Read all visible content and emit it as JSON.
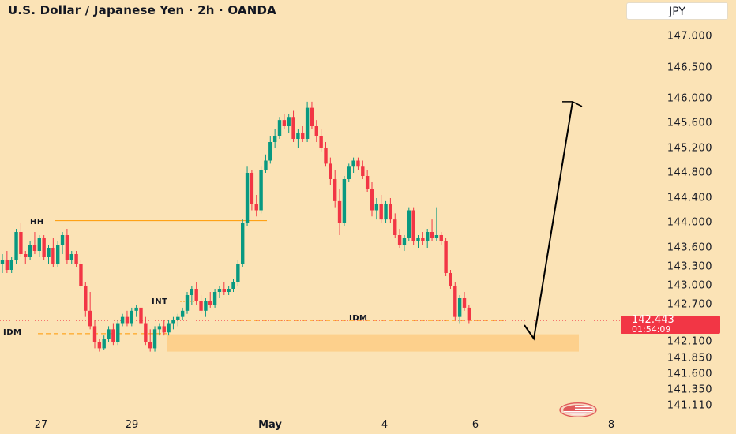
{
  "header": {
    "title": "U.S. Dollar / Japanese Yen · 2h · OANDA",
    "currency_button": "JPY"
  },
  "price_badge": {
    "price": "142.443",
    "countdown": "01:54:09"
  },
  "annotations": {
    "hh": "HH",
    "int": "INT",
    "idm_right": "IDM",
    "idm_left": "IDM"
  },
  "colors": {
    "background": "#fbe3b6",
    "up": "#089981",
    "down": "#f23645",
    "zone": "#fdd08c",
    "line": "#ff9800",
    "arrow": "#000000"
  },
  "icons": [
    "us-flag-icon"
  ],
  "chart_data": {
    "type": "candlestick",
    "title": "U.S. Dollar / Japanese Yen · 2h · OANDA",
    "ylim": [
      141.11,
      147.0
    ],
    "y_axis_scale": "non-linear (tick labels unevenly spaced)",
    "y_ticks": [
      147.0,
      146.5,
      146.0,
      145.6,
      145.2,
      144.8,
      144.4,
      144.0,
      143.6,
      143.3,
      143.0,
      142.7,
      142.1,
      141.85,
      141.6,
      141.35,
      141.11
    ],
    "y_tick_labels": [
      "147.000",
      "146.500",
      "146.000",
      "145.600",
      "145.200",
      "144.800",
      "144.400",
      "144.000",
      "143.600",
      "143.300",
      "143.000",
      "142.700",
      "142.100",
      "141.850",
      "141.600",
      "141.350",
      "141.110"
    ],
    "x_tick_labels": [
      "27",
      "29",
      "May",
      "4",
      "6",
      "8"
    ],
    "last_price": 142.443,
    "hh_level": 144.03,
    "int_level": 142.75,
    "idm_level": 142.43,
    "demand_zone": [
      141.95,
      142.22
    ],
    "projection_arrow": [
      142.15,
      145.95
    ],
    "candles_ohlc": [
      [
        143.35,
        143.5,
        143.2,
        143.4
      ],
      [
        143.4,
        143.55,
        143.2,
        143.25
      ],
      [
        143.25,
        143.45,
        143.2,
        143.4
      ],
      [
        143.4,
        143.9,
        143.35,
        143.85
      ],
      [
        143.85,
        144.0,
        143.45,
        143.5
      ],
      [
        143.5,
        143.55,
        143.35,
        143.45
      ],
      [
        143.45,
        143.7,
        143.4,
        143.65
      ],
      [
        143.65,
        143.85,
        143.5,
        143.55
      ],
      [
        143.55,
        143.8,
        143.45,
        143.75
      ],
      [
        143.75,
        143.8,
        143.4,
        143.45
      ],
      [
        143.45,
        143.65,
        143.35,
        143.6
      ],
      [
        143.6,
        143.75,
        143.3,
        143.35
      ],
      [
        143.35,
        143.7,
        143.3,
        143.65
      ],
      [
        143.65,
        143.85,
        143.5,
        143.8
      ],
      [
        143.8,
        143.9,
        143.35,
        143.4
      ],
      [
        143.4,
        143.55,
        143.35,
        143.5
      ],
      [
        143.5,
        143.55,
        143.3,
        143.35
      ],
      [
        143.35,
        143.4,
        142.95,
        143.0
      ],
      [
        143.0,
        143.05,
        142.5,
        142.6
      ],
      [
        142.6,
        142.9,
        142.3,
        142.35
      ],
      [
        142.35,
        142.45,
        142.0,
        142.1
      ],
      [
        142.1,
        142.15,
        141.95,
        142.0
      ],
      [
        142.0,
        142.2,
        141.97,
        142.15
      ],
      [
        142.15,
        142.35,
        142.1,
        142.3
      ],
      [
        142.3,
        142.4,
        142.05,
        142.1
      ],
      [
        142.1,
        142.45,
        142.05,
        142.4
      ],
      [
        142.4,
        142.55,
        142.35,
        142.5
      ],
      [
        142.5,
        142.6,
        142.35,
        142.4
      ],
      [
        142.4,
        142.65,
        142.35,
        142.6
      ],
      [
        142.6,
        142.7,
        142.5,
        142.65
      ],
      [
        142.65,
        142.75,
        142.35,
        142.4
      ],
      [
        142.4,
        142.5,
        142.05,
        142.1
      ],
      [
        142.1,
        142.3,
        141.95,
        142.0
      ],
      [
        142.0,
        142.35,
        141.95,
        142.3
      ],
      [
        142.3,
        142.4,
        142.2,
        142.35
      ],
      [
        142.35,
        142.45,
        142.2,
        142.25
      ],
      [
        142.25,
        142.45,
        142.2,
        142.4
      ],
      [
        142.4,
        142.5,
        142.3,
        142.45
      ],
      [
        142.45,
        142.55,
        142.35,
        142.5
      ],
      [
        142.5,
        142.65,
        142.45,
        142.6
      ],
      [
        142.6,
        142.9,
        142.55,
        142.85
      ],
      [
        142.85,
        143.0,
        142.7,
        142.95
      ],
      [
        142.95,
        143.05,
        142.7,
        142.75
      ],
      [
        142.75,
        142.85,
        142.55,
        142.6
      ],
      [
        142.6,
        142.8,
        142.5,
        142.75
      ],
      [
        142.75,
        142.9,
        142.65,
        142.7
      ],
      [
        142.7,
        142.95,
        142.65,
        142.9
      ],
      [
        142.9,
        143.0,
        142.8,
        142.95
      ],
      [
        142.95,
        143.05,
        142.85,
        142.9
      ],
      [
        142.9,
        143.0,
        142.85,
        142.95
      ],
      [
        142.95,
        143.1,
        142.9,
        143.05
      ],
      [
        143.05,
        143.4,
        143.0,
        143.35
      ],
      [
        143.35,
        144.05,
        143.3,
        144.0
      ],
      [
        144.0,
        144.9,
        143.95,
        144.8
      ],
      [
        144.8,
        144.85,
        144.2,
        144.3
      ],
      [
        144.3,
        144.45,
        144.1,
        144.2
      ],
      [
        144.2,
        144.9,
        144.15,
        144.85
      ],
      [
        144.85,
        145.1,
        144.8,
        145.0
      ],
      [
        145.0,
        145.4,
        144.95,
        145.3
      ],
      [
        145.3,
        145.5,
        145.2,
        145.4
      ],
      [
        145.4,
        145.7,
        145.35,
        145.65
      ],
      [
        145.65,
        145.75,
        145.5,
        145.55
      ],
      [
        145.55,
        145.75,
        145.45,
        145.7
      ],
      [
        145.7,
        145.8,
        145.3,
        145.35
      ],
      [
        145.35,
        145.5,
        145.2,
        145.45
      ],
      [
        145.45,
        145.55,
        145.3,
        145.35
      ],
      [
        145.35,
        145.95,
        145.3,
        145.85
      ],
      [
        145.85,
        145.95,
        145.5,
        145.55
      ],
      [
        145.55,
        145.65,
        145.3,
        145.4
      ],
      [
        145.4,
        145.5,
        145.15,
        145.2
      ],
      [
        145.2,
        145.3,
        144.9,
        144.95
      ],
      [
        144.95,
        145.05,
        144.6,
        144.7
      ],
      [
        144.7,
        144.85,
        144.25,
        144.35
      ],
      [
        144.35,
        144.55,
        143.8,
        144.0
      ],
      [
        144.0,
        144.75,
        143.95,
        144.7
      ],
      [
        144.7,
        144.95,
        144.65,
        144.9
      ],
      [
        144.9,
        145.05,
        144.8,
        145.0
      ],
      [
        145.0,
        145.05,
        144.85,
        144.9
      ],
      [
        144.9,
        145.0,
        144.7,
        144.75
      ],
      [
        144.75,
        144.85,
        144.5,
        144.55
      ],
      [
        144.55,
        144.65,
        144.1,
        144.2
      ],
      [
        144.2,
        144.4,
        144.05,
        144.3
      ],
      [
        144.3,
        144.45,
        144.0,
        144.05
      ],
      [
        144.05,
        144.35,
        144.0,
        144.3
      ],
      [
        144.3,
        144.4,
        144.0,
        144.05
      ],
      [
        144.05,
        144.15,
        143.75,
        143.8
      ],
      [
        143.8,
        143.9,
        143.6,
        143.65
      ],
      [
        143.65,
        143.8,
        143.55,
        143.75
      ],
      [
        143.75,
        144.25,
        143.7,
        144.2
      ],
      [
        144.2,
        144.25,
        143.65,
        143.7
      ],
      [
        143.7,
        143.8,
        143.6,
        143.75
      ],
      [
        143.75,
        143.85,
        143.65,
        143.7
      ],
      [
        143.7,
        143.9,
        143.6,
        143.85
      ],
      [
        143.85,
        144.05,
        143.7,
        143.75
      ],
      [
        143.75,
        144.25,
        143.7,
        143.8
      ],
      [
        143.8,
        143.85,
        143.65,
        143.7
      ],
      [
        143.7,
        143.75,
        143.15,
        143.2
      ],
      [
        143.2,
        143.25,
        142.95,
        143.0
      ],
      [
        143.0,
        143.05,
        142.45,
        142.5
      ],
      [
        142.5,
        142.85,
        142.4,
        142.8
      ],
      [
        142.8,
        142.9,
        142.6,
        142.65
      ],
      [
        142.65,
        142.7,
        142.4,
        142.44
      ]
    ]
  }
}
